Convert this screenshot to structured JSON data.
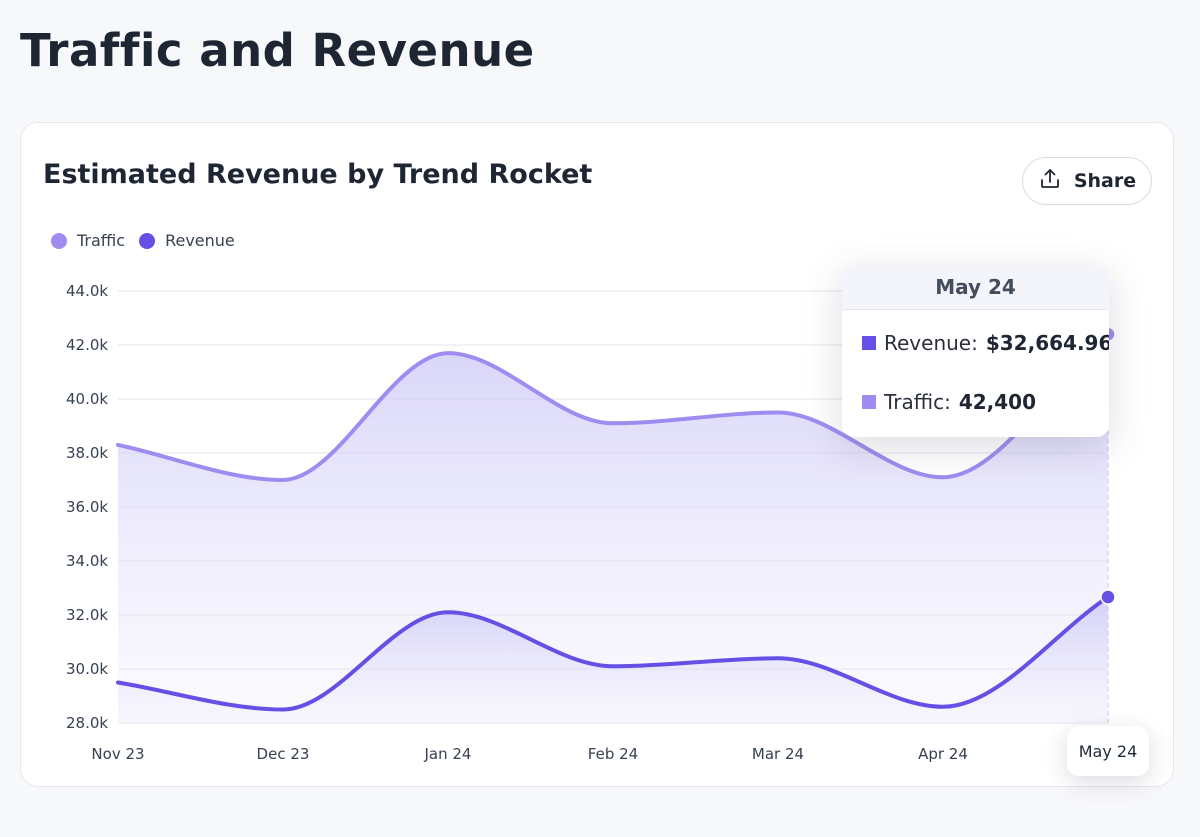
{
  "page": {
    "title": "Traffic and Revenue"
  },
  "card": {
    "title": "Estimated Revenue by Trend Rocket",
    "share_label": "Share"
  },
  "legend": [
    {
      "label": "Traffic",
      "color": "#a08cf0"
    },
    {
      "label": "Revenue",
      "color": "#6550e5"
    }
  ],
  "tooltip": {
    "title": "May 24",
    "rows": [
      {
        "label": "Revenue:",
        "value": "$32,664.96",
        "color": "#6550e5"
      },
      {
        "label": "Traffic:",
        "value": "42,400",
        "color": "#a08cf0"
      }
    ]
  },
  "x_highlight_label": "May 24",
  "chart_data": {
    "type": "line",
    "title": "Estimated Revenue by Trend Rocket",
    "categories": [
      "Nov 23",
      "Dec 23",
      "Jan 24",
      "Feb 24",
      "Mar 24",
      "Apr 24",
      "May 24"
    ],
    "series": [
      {
        "name": "Traffic",
        "color": "#a08cf0",
        "values": [
          38300,
          37000,
          41700,
          39100,
          39500,
          37100,
          42400
        ]
      },
      {
        "name": "Revenue",
        "color": "#6550e5",
        "values": [
          29500,
          28500,
          32100,
          30100,
          30400,
          28600,
          32665
        ]
      }
    ],
    "ylim": [
      28000,
      44000
    ],
    "yticks": [
      28000,
      30000,
      32000,
      34000,
      36000,
      38000,
      40000,
      42000,
      44000
    ],
    "ytick_labels": [
      "28.0k",
      "30.0k",
      "32.0k",
      "34.0k",
      "36.0k",
      "38.0k",
      "40.0k",
      "42.0k",
      "44.0k"
    ],
    "highlight_index": 6,
    "grid": true,
    "legend_position": "top-left"
  }
}
